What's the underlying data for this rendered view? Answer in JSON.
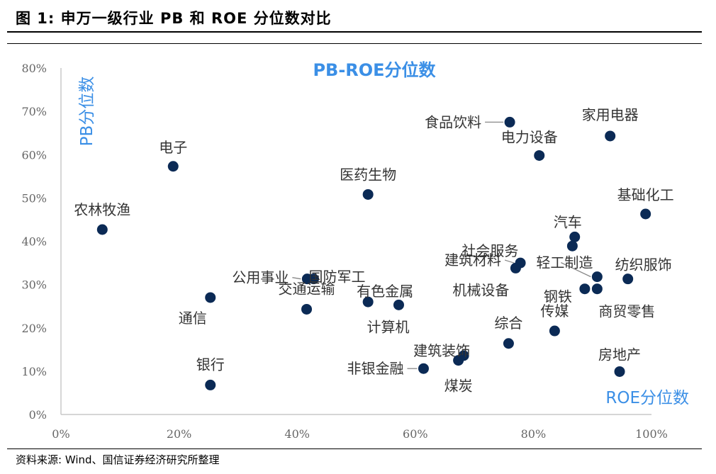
{
  "figure_title": "图 1: 申万一级行业 PB 和 ROE 分位数对比",
  "source": "资料来源: Wind、国信证券经济研究所整理",
  "colors": {
    "point": "#0b2a55",
    "accent": "#3b8fe6",
    "axis": "#c8c8c8",
    "tick": "#666666"
  },
  "chart_data": {
    "type": "scatter",
    "title": "PB-ROE分位数",
    "xlabel": "ROE分位数",
    "ylabel": "PB分位数",
    "xlim": [
      0,
      1
    ],
    "ylim": [
      0,
      0.8
    ],
    "x_ticks": [
      "0%",
      "20%",
      "40%",
      "60%",
      "80%",
      "100%"
    ],
    "y_ticks": [
      "0%",
      "10%",
      "20%",
      "30%",
      "40%",
      "50%",
      "60%",
      "70%",
      "80%"
    ],
    "grid": false,
    "points": [
      {
        "label": "食品饮料",
        "x": 0.76,
        "y": 0.675
      },
      {
        "label": "家用电器",
        "x": 0.93,
        "y": 0.643
      },
      {
        "label": "电力设备",
        "x": 0.81,
        "y": 0.598
      },
      {
        "label": "电子",
        "x": 0.19,
        "y": 0.573
      },
      {
        "label": "医药生物",
        "x": 0.52,
        "y": 0.508
      },
      {
        "label": "基础化工",
        "x": 0.99,
        "y": 0.463
      },
      {
        "label": "农林牧渔",
        "x": 0.07,
        "y": 0.427
      },
      {
        "label": "汽车",
        "x": 0.87,
        "y": 0.41
      },
      {
        "label": "社会服务",
        "x": 0.866,
        "y": 0.389
      },
      {
        "label": "建筑材料",
        "x": 0.778,
        "y": 0.35
      },
      {
        "label": "机械设备",
        "x": 0.77,
        "y": 0.338
      },
      {
        "label": "轻工制造",
        "x": 0.908,
        "y": 0.318
      },
      {
        "label": "纺织服饰",
        "x": 0.96,
        "y": 0.313
      },
      {
        "label": "公用事业",
        "x": 0.417,
        "y": 0.313
      },
      {
        "label": "国防军工",
        "x": 0.428,
        "y": 0.313
      },
      {
        "label": "钢铁",
        "x": 0.887,
        "y": 0.29
      },
      {
        "label": "商贸零售",
        "x": 0.908,
        "y": 0.29
      },
      {
        "label": "通信",
        "x": 0.253,
        "y": 0.27
      },
      {
        "label": "有色金属",
        "x": 0.52,
        "y": 0.26
      },
      {
        "label": "计算机",
        "x": 0.572,
        "y": 0.253
      },
      {
        "label": "交通运输",
        "x": 0.416,
        "y": 0.243
      },
      {
        "label": "传媒",
        "x": 0.836,
        "y": 0.193
      },
      {
        "label": "综合",
        "x": 0.758,
        "y": 0.164
      },
      {
        "label": "建筑装饰",
        "x": 0.682,
        "y": 0.136
      },
      {
        "label": "煤炭",
        "x": 0.673,
        "y": 0.125
      },
      {
        "label": "非银金融",
        "x": 0.614,
        "y": 0.106
      },
      {
        "label": "房地产",
        "x": 0.946,
        "y": 0.099
      },
      {
        "label": "银行",
        "x": 0.253,
        "y": 0.068
      }
    ]
  }
}
